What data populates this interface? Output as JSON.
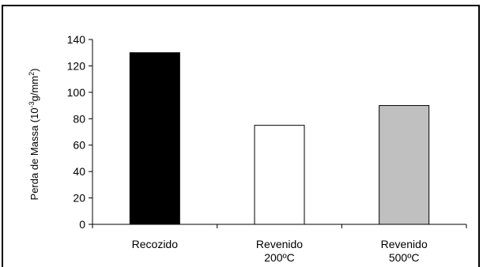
{
  "chart_data": {
    "type": "bar",
    "title": "",
    "xlabel": "",
    "ylabel": "Perda de Massa (10",
    "ylabel_sup": "-3",
    "ylabel_rest": "g/mm",
    "ylabel_sup2": "2",
    "ylabel_end": ")",
    "ylim": [
      0,
      140
    ],
    "yticks": [
      "0",
      "20",
      "40",
      "60",
      "80",
      "100",
      "120",
      "140"
    ],
    "categories": [
      [
        "Recozido"
      ],
      [
        "Revenido",
        "200ºC"
      ],
      [
        "Revenido",
        "500ºC"
      ]
    ],
    "values": [
      130,
      75,
      90
    ],
    "colors": [
      "#000000",
      "#ffffff",
      "#c0c0c0"
    ],
    "grid": false,
    "legend": "none"
  }
}
